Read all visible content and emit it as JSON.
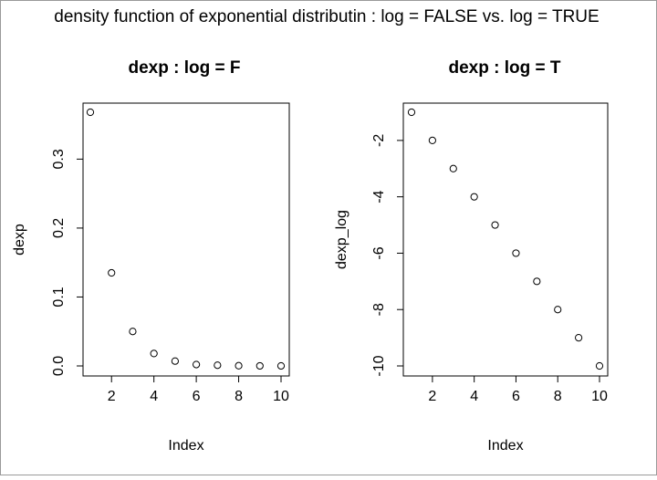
{
  "figure": {
    "main_title": "density function of exponential distributin : log = FALSE vs. log = TRUE"
  },
  "chart_data": [
    {
      "type": "scatter",
      "title": "dexp : log = F",
      "xlabel": "Index",
      "ylabel": "dexp",
      "x": [
        1,
        2,
        3,
        4,
        5,
        6,
        7,
        8,
        9,
        10
      ],
      "y": [
        0.368,
        0.135,
        0.05,
        0.018,
        0.007,
        0.002,
        0.001,
        0.0003,
        0.0001,
        5e-05
      ],
      "xlim": [
        1,
        10
      ],
      "ylim": [
        0,
        0.368
      ],
      "xticks": [
        2,
        4,
        6,
        8,
        10
      ],
      "xtick_labels": [
        "2",
        "4",
        "6",
        "8",
        "10"
      ],
      "yticks": [
        0.0,
        0.1,
        0.2,
        0.3
      ],
      "ytick_labels": [
        "0.0",
        "0.1",
        "0.2",
        "0.3"
      ],
      "marker": "open-circle",
      "grid": false,
      "color": "#000000"
    },
    {
      "type": "scatter",
      "title": "dexp : log = T",
      "xlabel": "Index",
      "ylabel": "dexp_log",
      "x": [
        1,
        2,
        3,
        4,
        5,
        6,
        7,
        8,
        9,
        10
      ],
      "y": [
        -1,
        -2,
        -3,
        -4,
        -5,
        -6,
        -7,
        -8,
        -9,
        -10
      ],
      "xlim": [
        1,
        10
      ],
      "ylim": [
        -10,
        -1
      ],
      "xticks": [
        2,
        4,
        6,
        8,
        10
      ],
      "xtick_labels": [
        "2",
        "4",
        "6",
        "8",
        "10"
      ],
      "yticks": [
        -2,
        -4,
        -6,
        -8,
        -10
      ],
      "ytick_labels": [
        "-2",
        "-4",
        "-6",
        "-8",
        "-10"
      ],
      "marker": "open-circle",
      "grid": false,
      "color": "#000000"
    }
  ]
}
